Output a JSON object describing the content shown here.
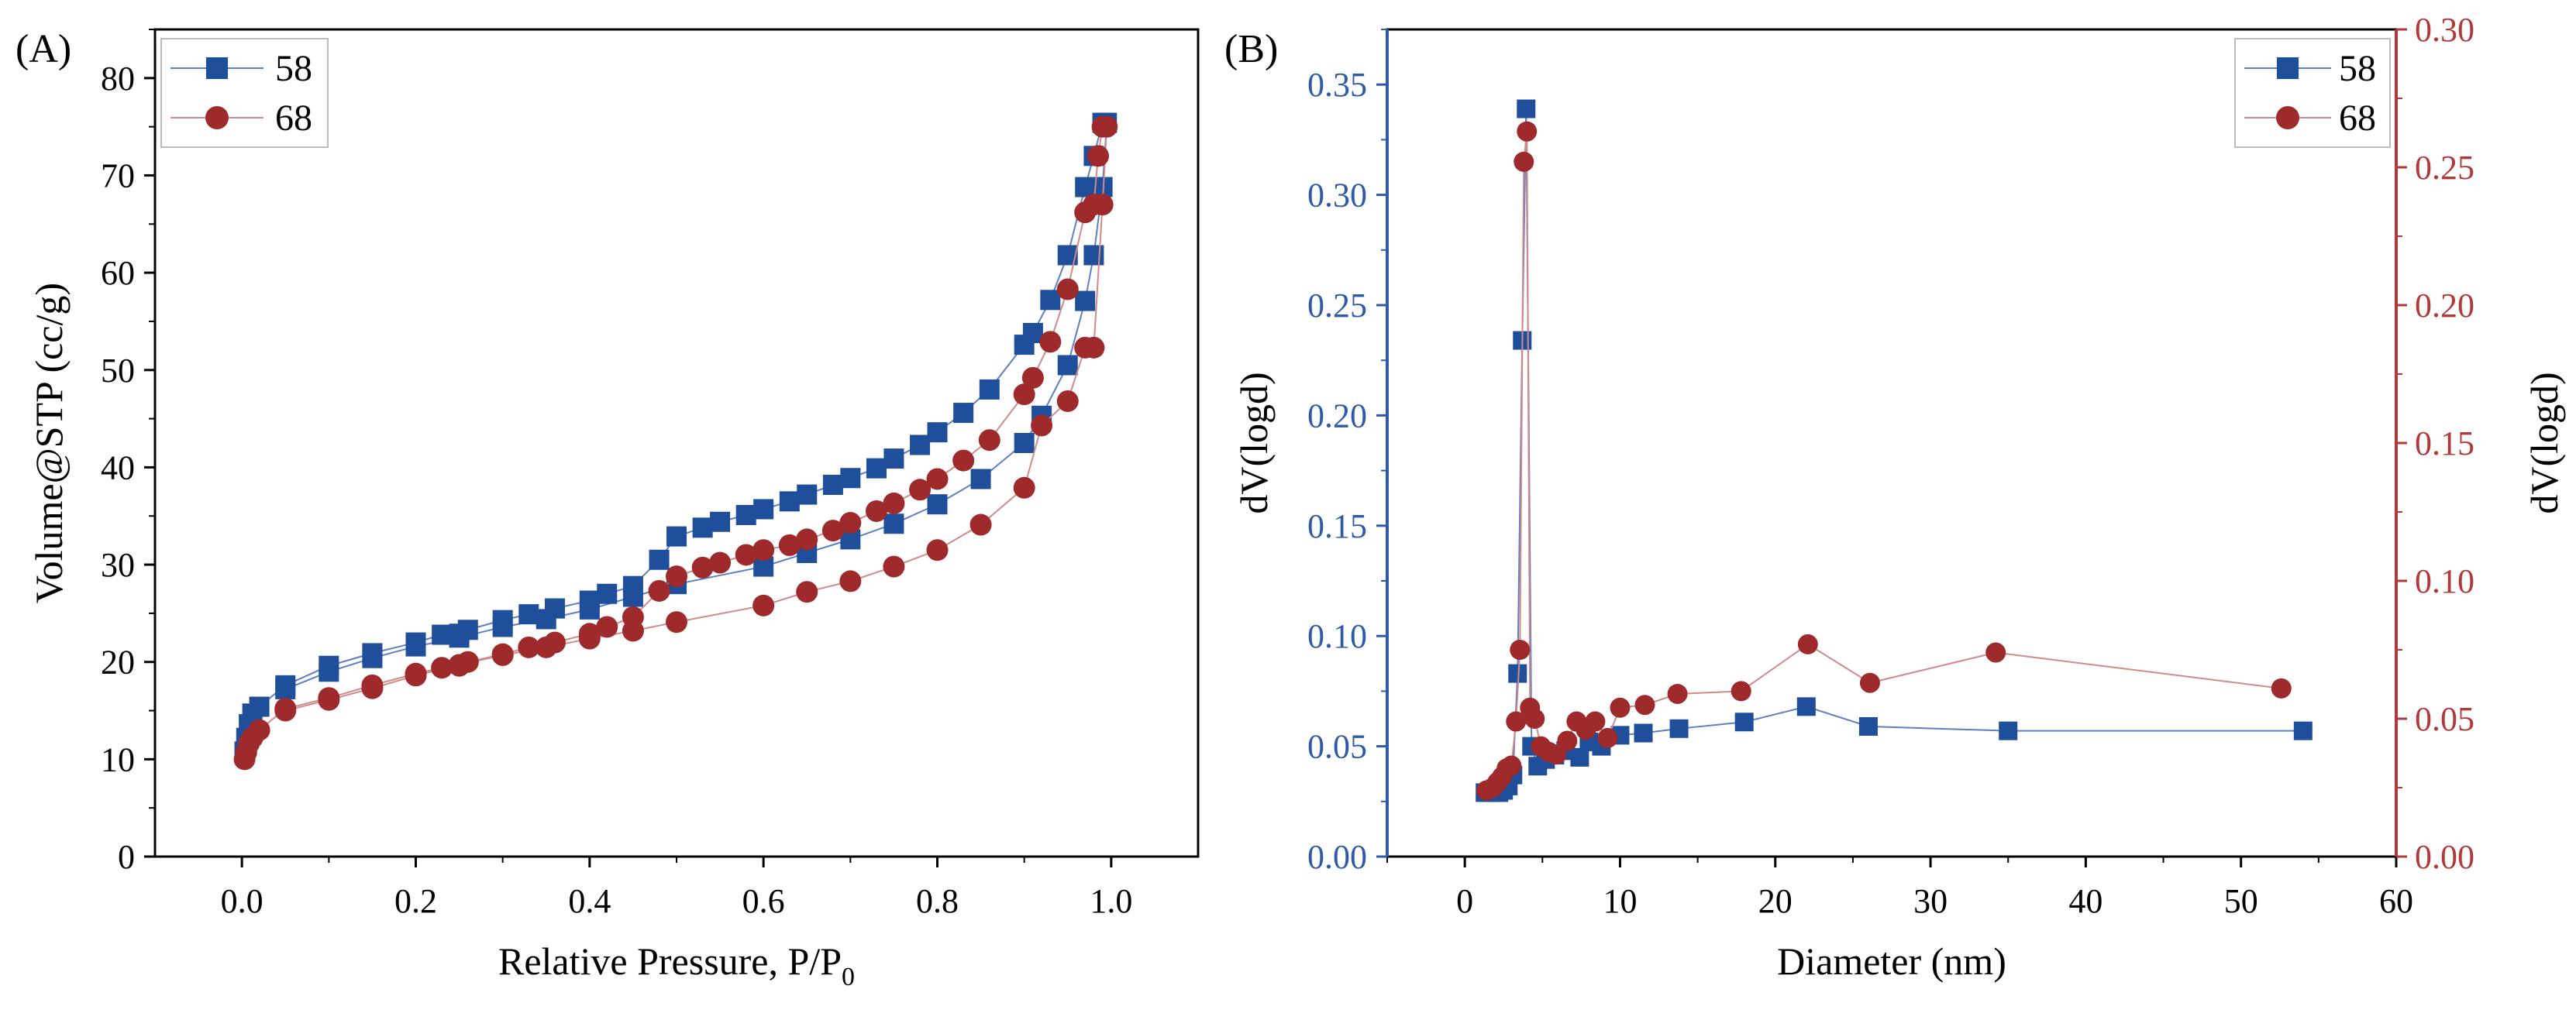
{
  "colors": {
    "s58": "#1f4e9b",
    "s68": "#9e2a2b",
    "axis": "#000000",
    "left_axis_b": "#2f5aa8",
    "right_axis_b": "#b03a3a",
    "line58": "#5f7fc4",
    "line68": "#d08a8a"
  },
  "chart_data": [
    {
      "type": "scatter",
      "panel_label": "(A)",
      "xlabel_main": "Relative Pressure, P/P",
      "xlabel_sub": "0",
      "ylabel": "Volume@STP (cc/g)",
      "xlim": [
        -0.1,
        1.1
      ],
      "ylim": [
        0,
        85
      ],
      "x_ticks": [
        0.0,
        0.2,
        0.4,
        0.6,
        0.8,
        1.0
      ],
      "x_tick_labels": [
        "0.0",
        "0.2",
        "0.4",
        "0.6",
        "0.8",
        "1.0"
      ],
      "y_ticks": [
        0,
        10,
        20,
        30,
        40,
        50,
        60,
        70,
        80
      ],
      "y_tick_labels": [
        "0",
        "10",
        "20",
        "30",
        "40",
        "50",
        "60",
        "70",
        "80"
      ],
      "legend": [
        {
          "name": "58",
          "marker": "square"
        },
        {
          "name": "68",
          "marker": "circle"
        }
      ],
      "legend_position": "top-left",
      "series": [
        {
          "name": "58",
          "marker": "square",
          "points": [
            [
              0.003,
              10.8
            ],
            [
              0.005,
              12.2
            ],
            [
              0.008,
              13.6
            ],
            [
              0.012,
              14.7
            ],
            [
              0.02,
              15.4
            ],
            [
              0.05,
              17.6
            ],
            [
              0.1,
              19.6
            ],
            [
              0.15,
              20.9
            ],
            [
              0.2,
              22.0
            ],
            [
              0.23,
              22.8
            ],
            [
              0.25,
              22.9
            ],
            [
              0.26,
              23.3
            ],
            [
              0.3,
              24.3
            ],
            [
              0.33,
              24.9
            ],
            [
              0.36,
              25.5
            ],
            [
              0.4,
              26.3
            ],
            [
              0.42,
              27.0
            ],
            [
              0.45,
              27.8
            ],
            [
              0.48,
              30.5
            ],
            [
              0.5,
              32.9
            ],
            [
              0.53,
              33.8
            ],
            [
              0.55,
              34.4
            ],
            [
              0.58,
              35.1
            ],
            [
              0.6,
              35.7
            ],
            [
              0.63,
              36.5
            ],
            [
              0.65,
              37.2
            ],
            [
              0.68,
              38.2
            ],
            [
              0.7,
              38.9
            ],
            [
              0.73,
              39.9
            ],
            [
              0.75,
              40.9
            ],
            [
              0.78,
              42.3
            ],
            [
              0.8,
              43.6
            ],
            [
              0.83,
              45.6
            ],
            [
              0.86,
              48.0
            ],
            [
              0.9,
              52.6
            ],
            [
              0.91,
              53.8
            ],
            [
              0.93,
              57.2
            ],
            [
              0.95,
              61.8
            ],
            [
              0.97,
              68.8
            ],
            [
              0.98,
              72.0
            ],
            [
              0.99,
              75.4
            ],
            [
              0.995,
              75.4
            ],
            [
              0.99,
              68.8
            ],
            [
              0.98,
              61.8
            ],
            [
              0.97,
              57.1
            ],
            [
              0.95,
              50.5
            ],
            [
              0.92,
              45.3
            ],
            [
              0.9,
              42.5
            ],
            [
              0.85,
              38.8
            ],
            [
              0.8,
              36.2
            ],
            [
              0.75,
              34.2
            ],
            [
              0.7,
              32.6
            ],
            [
              0.65,
              31.2
            ],
            [
              0.6,
              29.8
            ],
            [
              0.5,
              28.0
            ],
            [
              0.45,
              26.7
            ],
            [
              0.4,
              25.4
            ],
            [
              0.35,
              24.4
            ],
            [
              0.3,
              23.6
            ],
            [
              0.25,
              22.5
            ],
            [
              0.2,
              21.6
            ],
            [
              0.15,
              20.4
            ],
            [
              0.1,
              19.0
            ],
            [
              0.05,
              17.2
            ]
          ]
        },
        {
          "name": "68",
          "marker": "circle",
          "points": [
            [
              0.003,
              10.0
            ],
            [
              0.005,
              10.7
            ],
            [
              0.008,
              11.6
            ],
            [
              0.012,
              12.2
            ],
            [
              0.02,
              13.0
            ],
            [
              0.05,
              15.2
            ],
            [
              0.1,
              16.3
            ],
            [
              0.15,
              17.6
            ],
            [
              0.2,
              18.8
            ],
            [
              0.23,
              19.4
            ],
            [
              0.25,
              19.6
            ],
            [
              0.26,
              20.0
            ],
            [
              0.3,
              20.8
            ],
            [
              0.33,
              21.5
            ],
            [
              0.36,
              22.0
            ],
            [
              0.4,
              22.9
            ],
            [
              0.42,
              23.6
            ],
            [
              0.45,
              24.6
            ],
            [
              0.48,
              27.3
            ],
            [
              0.5,
              28.8
            ],
            [
              0.53,
              29.7
            ],
            [
              0.55,
              30.2
            ],
            [
              0.58,
              31.0
            ],
            [
              0.6,
              31.5
            ],
            [
              0.63,
              32.0
            ],
            [
              0.65,
              32.6
            ],
            [
              0.68,
              33.5
            ],
            [
              0.7,
              34.3
            ],
            [
              0.73,
              35.5
            ],
            [
              0.75,
              36.3
            ],
            [
              0.78,
              37.7
            ],
            [
              0.8,
              38.8
            ],
            [
              0.83,
              40.7
            ],
            [
              0.86,
              42.8
            ],
            [
              0.9,
              47.5
            ],
            [
              0.91,
              49.2
            ],
            [
              0.93,
              52.9
            ],
            [
              0.95,
              58.3
            ],
            [
              0.97,
              66.2
            ],
            [
              0.98,
              67.0
            ],
            [
              0.985,
              72.0
            ],
            [
              0.99,
              75.0
            ],
            [
              0.995,
              75.0
            ],
            [
              0.99,
              67.0
            ],
            [
              0.98,
              52.3
            ],
            [
              0.97,
              52.3
            ],
            [
              0.95,
              46.8
            ],
            [
              0.92,
              44.3
            ],
            [
              0.9,
              37.9
            ],
            [
              0.85,
              34.1
            ],
            [
              0.8,
              31.5
            ],
            [
              0.75,
              29.8
            ],
            [
              0.7,
              28.3
            ],
            [
              0.65,
              27.2
            ],
            [
              0.6,
              25.8
            ],
            [
              0.5,
              24.1
            ],
            [
              0.45,
              23.2
            ],
            [
              0.4,
              22.4
            ],
            [
              0.35,
              21.5
            ],
            [
              0.3,
              20.7
            ],
            [
              0.25,
              19.7
            ],
            [
              0.2,
              18.6
            ],
            [
              0.15,
              17.3
            ],
            [
              0.1,
              16.1
            ],
            [
              0.05,
              15.0
            ]
          ]
        }
      ]
    },
    {
      "type": "line",
      "panel_label": "(B)",
      "xlabel": "Diameter (nm)",
      "ylabel_left": "dV(logd)",
      "ylabel_right": "dV(logd)",
      "xlim": [
        -5,
        60
      ],
      "ylim_left": [
        0,
        0.375
      ],
      "ylim_right": [
        0,
        0.3
      ],
      "x_ticks": [
        0,
        10,
        20,
        30,
        40,
        50,
        60
      ],
      "x_tick_labels": [
        "0",
        "10",
        "20",
        "30",
        "40",
        "50",
        "60"
      ],
      "y_left_ticks": [
        0,
        0.05,
        0.1,
        0.15,
        0.2,
        0.25,
        0.3,
        0.35
      ],
      "y_left_tick_labels": [
        "0.00",
        "0.05",
        "0.10",
        "0.15",
        "0.20",
        "0.25",
        "0.30",
        "0.35"
      ],
      "y_right_ticks": [
        0,
        0.05,
        0.1,
        0.15,
        0.2,
        0.25,
        0.3
      ],
      "y_right_tick_labels": [
        "0.00",
        "0.05",
        "0.10",
        "0.15",
        "0.20",
        "0.25",
        "0.30"
      ],
      "legend": [
        {
          "name": "58",
          "marker": "square"
        },
        {
          "name": "68",
          "marker": "circle"
        }
      ],
      "legend_position": "top-right",
      "series": [
        {
          "name": "58",
          "marker": "square",
          "axis": "left",
          "points": [
            [
              1.3,
              0.029
            ],
            [
              1.6,
              0.029
            ],
            [
              1.9,
              0.029
            ],
            [
              2.2,
              0.029
            ],
            [
              2.5,
              0.03
            ],
            [
              2.8,
              0.032
            ],
            [
              3.1,
              0.037
            ],
            [
              3.4,
              0.083
            ],
            [
              3.7,
              0.234
            ],
            [
              3.95,
              0.339
            ],
            [
              4.3,
              0.05
            ],
            [
              4.7,
              0.041
            ],
            [
              5.2,
              0.044
            ],
            [
              5.8,
              0.046
            ],
            [
              6.5,
              0.048
            ],
            [
              7.4,
              0.045
            ],
            [
              8.0,
              0.052
            ],
            [
              8.8,
              0.05
            ],
            [
              10.0,
              0.055
            ],
            [
              11.5,
              0.056
            ],
            [
              13.8,
              0.058
            ],
            [
              18.0,
              0.061
            ],
            [
              22.0,
              0.068
            ],
            [
              26.0,
              0.059
            ],
            [
              35.0,
              0.057
            ],
            [
              54.0,
              0.057
            ]
          ]
        },
        {
          "name": "68",
          "marker": "circle",
          "axis": "right",
          "points": [
            [
              1.4,
              0.024
            ],
            [
              1.8,
              0.025
            ],
            [
              2.1,
              0.027
            ],
            [
              2.4,
              0.029
            ],
            [
              2.7,
              0.032
            ],
            [
              3.0,
              0.033
            ],
            [
              3.3,
              0.049
            ],
            [
              3.55,
              0.075
            ],
            [
              3.8,
              0.252
            ],
            [
              4.0,
              0.263
            ],
            [
              4.2,
              0.054
            ],
            [
              4.5,
              0.05
            ],
            [
              4.9,
              0.04
            ],
            [
              5.4,
              0.038
            ],
            [
              5.9,
              0.037
            ],
            [
              6.6,
              0.042
            ],
            [
              7.2,
              0.049
            ],
            [
              7.8,
              0.046
            ],
            [
              8.4,
              0.049
            ],
            [
              9.2,
              0.043
            ],
            [
              10.0,
              0.054
            ],
            [
              11.6,
              0.055
            ],
            [
              13.7,
              0.059
            ],
            [
              17.8,
              0.06
            ],
            [
              22.1,
              0.077
            ],
            [
              26.1,
              0.063
            ],
            [
              34.2,
              0.074
            ],
            [
              52.6,
              0.061
            ]
          ]
        }
      ]
    }
  ]
}
